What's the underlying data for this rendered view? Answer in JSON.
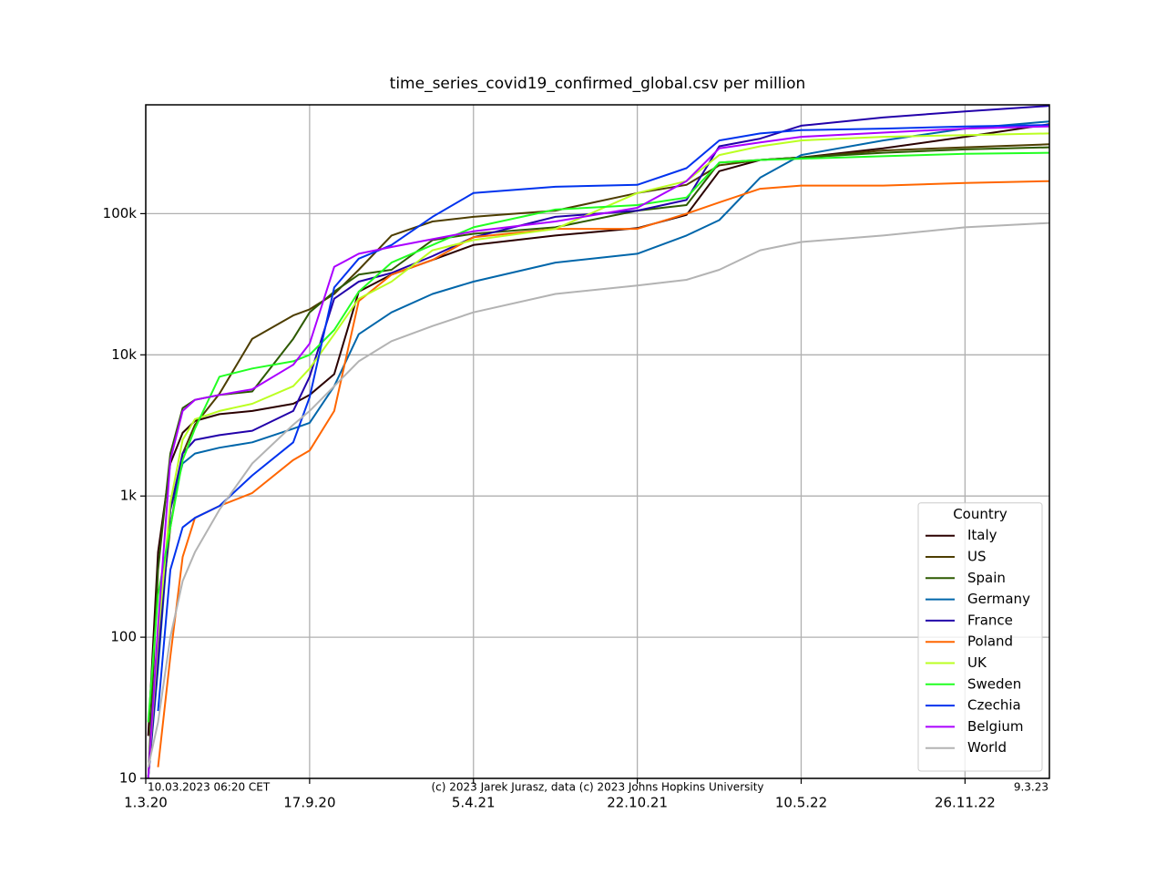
{
  "chart_data": {
    "type": "line",
    "title": "time_series_covid19_confirmed_global.csv per million",
    "x": [
      "2020-03-04",
      "2020-03-16",
      "2020-03-31",
      "2020-04-15",
      "2020-04-30",
      "2020-05-30",
      "2020-07-09",
      "2020-08-28",
      "2020-09-17",
      "2020-10-17",
      "2020-11-16",
      "2020-12-26",
      "2021-02-14",
      "2021-04-05",
      "2021-07-14",
      "2021-10-22",
      "2021-12-21",
      "2022-01-30",
      "2022-03-21",
      "2022-05-10",
      "2022-08-18",
      "2022-11-26",
      "2023-03-09"
    ],
    "xlim": [
      "2020-03-01",
      "2023-03-09"
    ],
    "xticks": [
      {
        "value": "2020-03-01",
        "label": "1.3.20"
      },
      {
        "value": "2020-09-17",
        "label": "17.9.20"
      },
      {
        "value": "2021-04-05",
        "label": "5.4.21"
      },
      {
        "value": "2021-10-22",
        "label": "22.10.21"
      },
      {
        "value": "2022-05-10",
        "label": "10.5.22"
      },
      {
        "value": "2022-11-26",
        "label": "26.11.22"
      }
    ],
    "ylim": [
      10,
      590000
    ],
    "yticks": [
      10,
      100,
      {
        "value": 1000,
        "label": "1k"
      },
      {
        "value": 10000,
        "label": "10k"
      },
      {
        "value": 100000,
        "label": "100k"
      }
    ],
    "log_scale_y": true,
    "grid": true,
    "legend_title": "Country",
    "legend_position": "lower right",
    "annotations": [
      "10.03.2023 06:20 CET",
      "(c) 2023 Jarek Jurasz, data (c) 2023 Johns Hopkins University",
      "9.3.23"
    ],
    "series": [
      {
        "name": "Italy",
        "color": "#2b0000",
        "values": [
          20,
          400,
          1700,
          2800,
          3400,
          3800,
          4000,
          4500,
          5200,
          7300,
          28000,
          37000,
          47000,
          60000,
          70000,
          79000,
          98000,
          200000,
          240000,
          250000,
          290000,
          350000,
          430000
        ]
      },
      {
        "name": "US",
        "color": "#4d3d00",
        "values": [
          10,
          100,
          600,
          2000,
          3200,
          5300,
          13000,
          19000,
          21000,
          27000,
          40000,
          70000,
          88000,
          95000,
          105000,
          140000,
          160000,
          220000,
          240000,
          250000,
          280000,
          295000,
          310000
        ]
      },
      {
        "name": "Spain",
        "color": "#2d5a00",
        "values": [
          10,
          300,
          2000,
          4200,
          4800,
          5200,
          5500,
          13000,
          20000,
          28000,
          37000,
          40000,
          65000,
          72000,
          80000,
          105000,
          115000,
          230000,
          240000,
          250000,
          270000,
          285000,
          295000
        ]
      },
      {
        "name": "Germany",
        "color": "#0066aa",
        "values": [
          10,
          60,
          800,
          1700,
          2000,
          2200,
          2400,
          3000,
          3300,
          6000,
          14000,
          20000,
          27000,
          33000,
          45000,
          52000,
          70000,
          90000,
          180000,
          260000,
          330000,
          400000,
          450000
        ]
      },
      {
        "name": "France",
        "color": "#2200aa",
        "values": [
          10,
          70,
          800,
          2000,
          2500,
          2700,
          2900,
          4000,
          7000,
          25000,
          33000,
          38000,
          50000,
          68000,
          95000,
          105000,
          125000,
          300000,
          340000,
          420000,
          480000,
          530000,
          580000
        ]
      },
      {
        "name": "Poland",
        "color": "#ff6600",
        "values": [
          null,
          12,
          73,
          370,
          700,
          850,
          1050,
          1800,
          2100,
          4000,
          24000,
          37000,
          47000,
          68000,
          78000,
          78000,
          100000,
          120000,
          150000,
          158000,
          158000,
          165000,
          170000
        ]
      },
      {
        "name": "UK",
        "color": "#bbff22",
        "values": [
          10,
          100,
          900,
          2500,
          3500,
          4000,
          4500,
          6000,
          8000,
          14000,
          25000,
          33000,
          55000,
          65000,
          78000,
          140000,
          170000,
          260000,
          300000,
          330000,
          350000,
          360000,
          370000
        ]
      },
      {
        "name": "Sweden",
        "color": "#22ff22",
        "values": [
          25,
          200,
          600,
          1800,
          3000,
          7000,
          8000,
          9000,
          10000,
          15000,
          28000,
          45000,
          60000,
          80000,
          107000,
          115000,
          130000,
          230000,
          240000,
          245000,
          255000,
          265000,
          270000
        ]
      },
      {
        "name": "Czechia",
        "color": "#0033ee",
        "values": [
          null,
          30,
          300,
          600,
          700,
          850,
          1400,
          2400,
          5000,
          30000,
          48000,
          60000,
          95000,
          140000,
          155000,
          160000,
          210000,
          330000,
          370000,
          390000,
          400000,
          415000,
          425000
        ]
      },
      {
        "name": "Belgium",
        "color": "#aa00ff",
        "values": [
          10,
          120,
          1800,
          4000,
          4800,
          5200,
          5700,
          8500,
          12000,
          42000,
          52000,
          58000,
          66000,
          75000,
          88000,
          110000,
          170000,
          290000,
          320000,
          350000,
          375000,
          400000,
          415000
        ]
      },
      {
        "name": "World",
        "color": "#b3b3b3",
        "values": [
          12,
          25,
          100,
          250,
          400,
          800,
          1700,
          3200,
          4000,
          6000,
          9000,
          12500,
          16000,
          20000,
          27000,
          31000,
          34000,
          40000,
          55000,
          63000,
          70000,
          80000,
          86000
        ]
      }
    ]
  }
}
